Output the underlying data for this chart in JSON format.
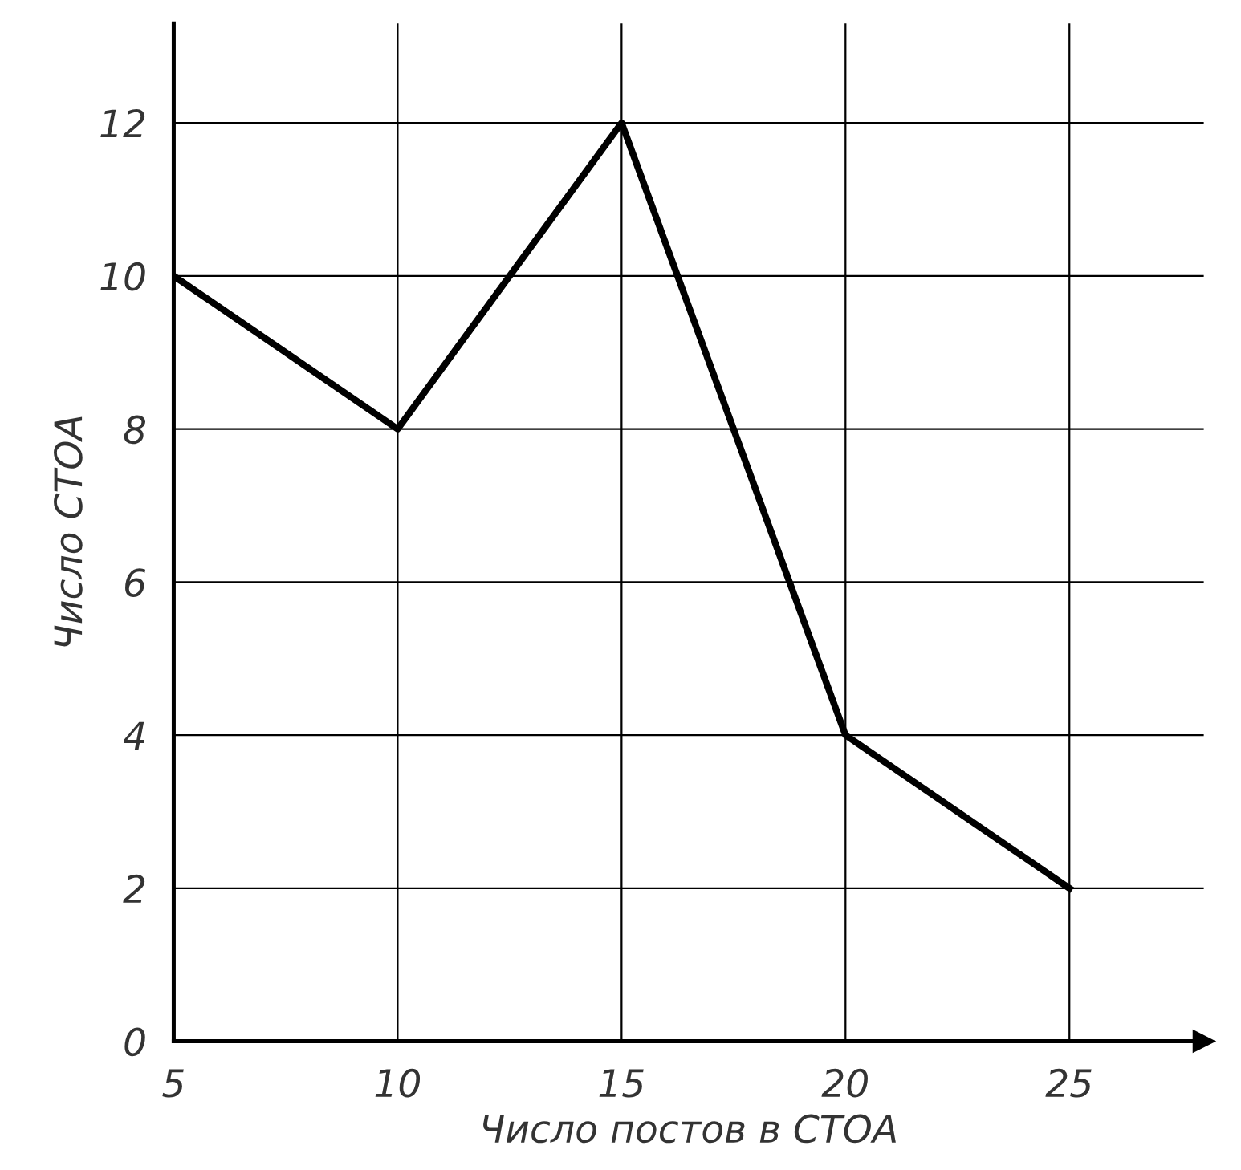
{
  "chart_data": {
    "type": "line",
    "xlabel": "Число постов в СТОА",
    "ylabel": "Число СТОА",
    "x": [
      5,
      10,
      15,
      20,
      25
    ],
    "series": [
      {
        "color": "#000000",
        "values": [
          10,
          8,
          12,
          4,
          2
        ]
      }
    ],
    "xlim": [
      5,
      28
    ],
    "ylim": [
      0,
      13.3
    ],
    "xticks": [
      5,
      10,
      15,
      20,
      25
    ],
    "yticks": [
      0,
      2,
      4,
      6,
      8,
      10,
      12
    ],
    "grid": true,
    "marker": "none",
    "line_style": "solid",
    "legend": false
  }
}
